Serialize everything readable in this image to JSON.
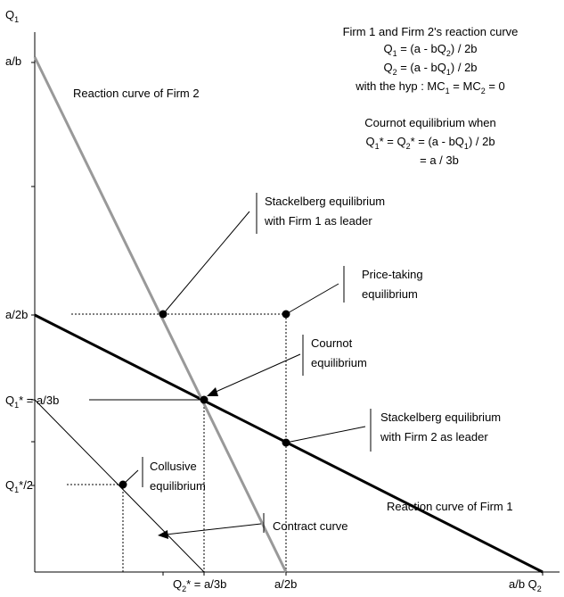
{
  "axes": {
    "y_label": "Q",
    "y_label_sub": "1",
    "y_tick_ab": "a/b",
    "y_tick_a2b": "a/2b",
    "y_tick_q1star": "Q",
    "y_tick_q1star_sub": "1",
    "y_tick_q1star_rest": "* = a/3b",
    "y_tick_q1half": "Q",
    "y_tick_q1half_sub": "1",
    "y_tick_q1half_rest": "*/2",
    "x_tick_q2star": "Q",
    "x_tick_q2star_sub": "2",
    "x_tick_q2star_rest": "* = a/3b",
    "x_tick_a2b": "a/2b",
    "x_tick_ab": "a/b Q",
    "x_tick_ab_sub": "2"
  },
  "curves": {
    "firm2_label": "Reaction curve of Firm 2",
    "firm1_label": "Reaction curve of Firm 1",
    "contract_label": "Contract curve",
    "firm1_color": "#000000",
    "firm2_color": "#999999"
  },
  "equations": {
    "line1": "Firm 1 and Firm 2's reaction curve",
    "line2": {
      "a": "Q",
      "a_sub": "1",
      "b": " = (a - bQ",
      "b_sub": "2",
      "c": ") / 2b"
    },
    "line3": {
      "a": "Q",
      "a_sub": "2",
      "b": " = (a - bQ",
      "b_sub": "1",
      "c": ") / 2b"
    },
    "line4": {
      "a": "with the hyp : MC",
      "a_sub": "1",
      "b": " = MC",
      "b_sub": "2",
      "c": " = 0"
    },
    "line5": "Cournot equilibrium when",
    "line6": {
      "a": "Q",
      "a_sub": "1",
      "b": "* = Q",
      "b_sub": "2",
      "c": "* = (a - bQ",
      "c_sub": "1",
      "d": ") / 2b"
    },
    "line7": "= a / 3b"
  },
  "annotations": {
    "stackelberg1": [
      "Stackelberg equilibrium",
      "with Firm 1 as leader"
    ],
    "price_taking": [
      "Price-taking",
      "equilibrium"
    ],
    "cournot": [
      "Cournot",
      "equilibrium"
    ],
    "stackelberg2": [
      "Stackelberg equilibrium",
      "with Firm 2 as leader"
    ],
    "collusive": [
      "Collusive",
      "equilibrium"
    ]
  },
  "chart_data": {
    "type": "diagram",
    "units": "fractions of a/b (axis value = a/b × number)",
    "reaction_curve_firm1": {
      "from": [
        0,
        0.5
      ],
      "to": [
        1,
        0
      ]
    },
    "reaction_curve_firm2": {
      "from": [
        0,
        1
      ],
      "to": [
        0.5,
        0
      ]
    },
    "contract_curve": {
      "from": [
        0,
        0.333
      ],
      "to": [
        0.333,
        0
      ]
    },
    "points": [
      {
        "name": "Stackelberg equilibrium with Firm 1 as leader",
        "q2": 0.25,
        "q1": 0.5
      },
      {
        "name": "Price-taking equilibrium",
        "q2": 0.5,
        "q1": 0.5
      },
      {
        "name": "Cournot equilibrium",
        "q2": 0.333,
        "q1": 0.333
      },
      {
        "name": "Stackelberg equilibrium with Firm 2 as leader",
        "q2": 0.5,
        "q1": 0.25
      },
      {
        "name": "Collusive equilibrium",
        "q2": 0.167,
        "q1": 0.167
      }
    ]
  }
}
